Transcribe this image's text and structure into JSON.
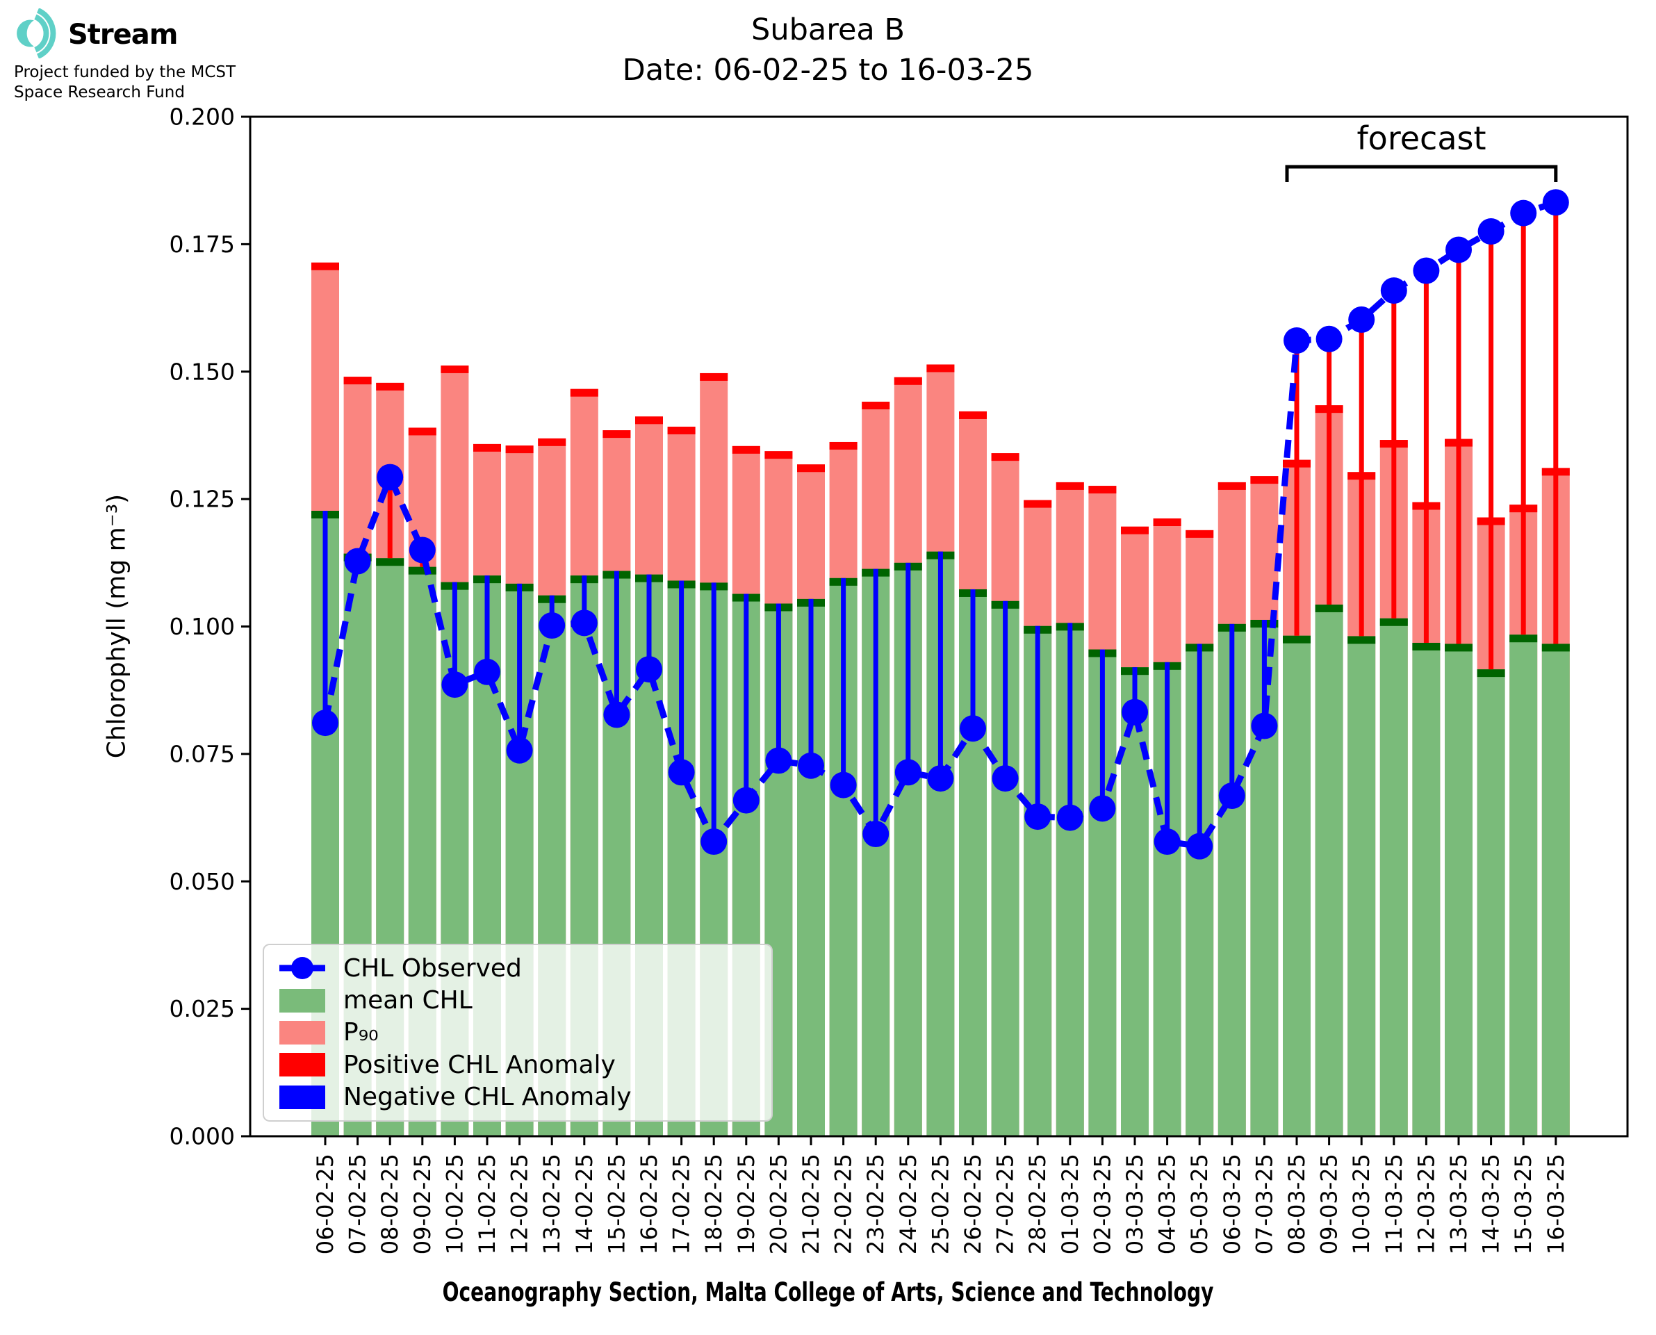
{
  "header": {
    "title_line1": "Subarea B",
    "title_line2": "Date: 06-02-25 to 16-03-25"
  },
  "logo": {
    "brand": "Stream",
    "funding_line1": "Project funded by the MCST",
    "funding_line2": "Space Research Fund",
    "icon": "sound-wave-arcs",
    "icon_color": "#5FD0C7"
  },
  "caption": "Oceanography Section, Malta College of Arts, Science and Technology",
  "forecast": {
    "label": "forecast",
    "start_date": "08-03-25",
    "end_date": "16-03-25"
  },
  "legend": {
    "entries": [
      {
        "type": "line-marker",
        "label": "CHL Observed",
        "color": "#0000FF"
      },
      {
        "type": "patch",
        "label": "mean CHL",
        "color": "#7ABB7A"
      },
      {
        "type": "patch",
        "label": "P₉₀",
        "color": "#FA8580"
      },
      {
        "type": "patch",
        "label": "Positive CHL Anomaly",
        "color": "#FF0000"
      },
      {
        "type": "patch",
        "label": "Negative CHL Anomaly",
        "color": "#0000FF"
      }
    ]
  },
  "chart_data": {
    "type": "bar",
    "title": "Subarea B — Date: 06-02-25 to 16-03-25",
    "xlabel": "Oceanography Section, Malta College of Arts, Science and Technology",
    "ylabel": "Chlorophyll (mg m⁻³)",
    "ylim": [
      0.0,
      0.2
    ],
    "y_ticks": [
      "0.000",
      "0.025",
      "0.050",
      "0.075",
      "0.100",
      "0.125",
      "0.150",
      "0.175",
      "0.200"
    ],
    "grid": false,
    "legend_position": "lower left",
    "categories": [
      "06-02-25",
      "07-02-25",
      "08-02-25",
      "09-02-25",
      "10-02-25",
      "11-02-25",
      "12-02-25",
      "13-02-25",
      "14-02-25",
      "15-02-25",
      "16-02-25",
      "17-02-25",
      "18-02-25",
      "19-02-25",
      "20-02-25",
      "21-02-25",
      "22-02-25",
      "23-02-25",
      "24-02-25",
      "25-02-25",
      "26-02-25",
      "27-02-25",
      "28-02-25",
      "01-03-25",
      "02-03-25",
      "03-03-25",
      "04-03-25",
      "05-03-25",
      "06-03-25",
      "07-03-25",
      "08-03-25",
      "09-03-25",
      "10-03-25",
      "11-03-25",
      "12-03-25",
      "13-03-25",
      "14-03-25",
      "15-03-25",
      "16-03-25"
    ],
    "forecast_start_index": 30,
    "series": [
      {
        "name": "mean CHL",
        "type": "bar",
        "color": "#7ABB7A",
        "edge_color": "#006400",
        "values": [
          0.1227,
          0.1143,
          0.1134,
          0.1117,
          0.1087,
          0.11,
          0.1084,
          0.1061,
          0.11,
          0.1109,
          0.1102,
          0.109,
          0.1086,
          0.1064,
          0.1045,
          0.1054,
          0.1095,
          0.1113,
          0.1125,
          0.1147,
          0.1073,
          0.105,
          0.1001,
          0.1007,
          0.0955,
          0.092,
          0.093,
          0.0966,
          0.1005,
          0.1013,
          0.0982,
          0.1043,
          0.0981,
          0.1016,
          0.0968,
          0.0966,
          0.0916,
          0.0984,
          0.0966
        ]
      },
      {
        "name": "P₉₀",
        "type": "bar",
        "color": "#FA8580",
        "edge_color": "#FF0000",
        "values": [
          0.1714,
          0.149,
          0.1478,
          0.139,
          0.1512,
          0.1358,
          0.1355,
          0.1369,
          0.1466,
          0.1385,
          0.1412,
          0.1392,
          0.1497,
          0.1354,
          0.1344,
          0.1318,
          0.1362,
          0.1441,
          0.1489,
          0.1514,
          0.1422,
          0.134,
          0.1248,
          0.1283,
          0.1276,
          0.1196,
          0.1212,
          0.1189,
          0.1283,
          0.1295,
          0.1327,
          0.1434,
          0.1303,
          0.1366,
          0.1244,
          0.1368,
          0.1214,
          0.1239,
          0.1311
        ]
      },
      {
        "name": "CHL Observed",
        "type": "line",
        "style": "dashed",
        "color": "#0000FF",
        "marker": "circle",
        "values": [
          0.0811,
          0.1128,
          0.1293,
          0.115,
          0.0886,
          0.0911,
          0.0757,
          0.1002,
          0.1007,
          0.0827,
          0.0916,
          0.0714,
          0.0578,
          0.0659,
          0.0737,
          0.0727,
          0.0689,
          0.0593,
          0.0714,
          0.0702,
          0.08,
          0.0702,
          0.0627,
          0.0625,
          0.0643,
          0.0832,
          0.0578,
          0.0569,
          0.0668,
          0.0805,
          0.1561,
          0.1564,
          0.1602,
          0.1659,
          0.1698,
          0.1739,
          0.1775,
          0.1811,
          0.1832
        ]
      }
    ],
    "anomaly": {
      "positive_color": "#FF0000",
      "negative_color": "#0000FF",
      "rule": "red line where observed > mean CHL, blue line where observed < mean CHL"
    }
  }
}
